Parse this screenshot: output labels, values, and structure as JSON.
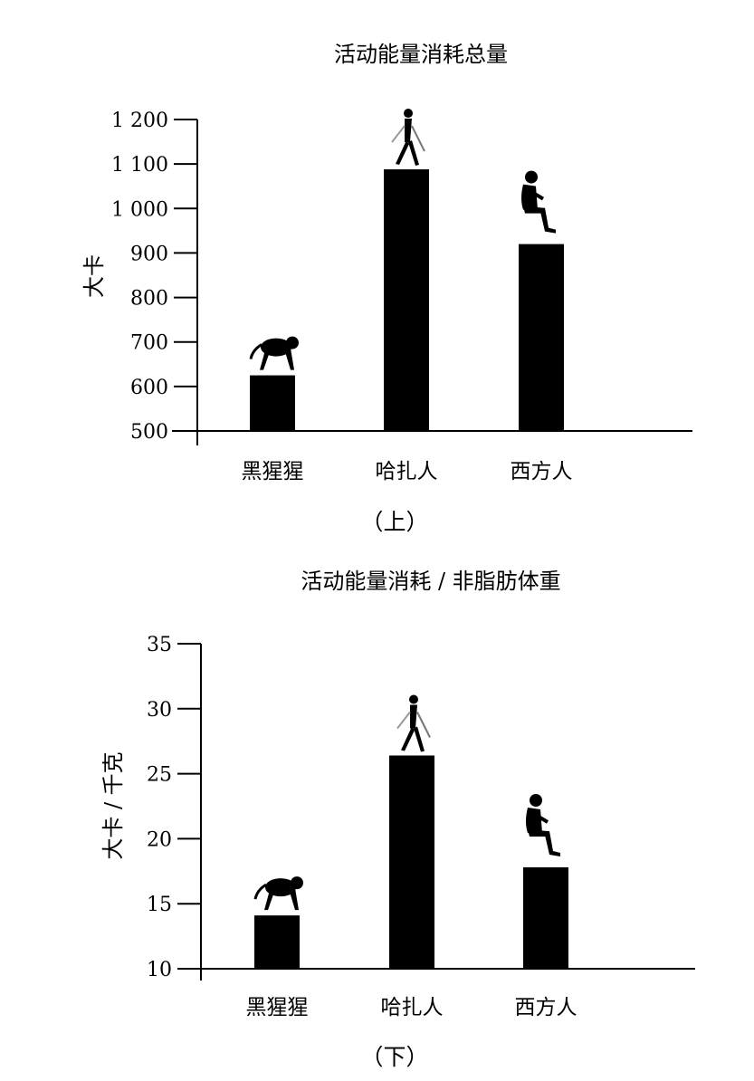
{
  "chart_data": [
    {
      "type": "bar",
      "title": "活动能量消耗总量",
      "ylabel": "大卡",
      "xlabel": "",
      "categories": [
        "黑猩猩",
        "哈扎人",
        "西方人"
      ],
      "values": [
        625,
        1088,
        920
      ],
      "ylim": [
        500,
        1200
      ],
      "yticks": [
        500,
        600,
        700,
        800,
        900,
        1000,
        1100,
        1200
      ],
      "ytick_labels": [
        "500",
        "600",
        "700",
        "800",
        "900",
        "1 000",
        "1 100",
        "1 200"
      ],
      "icons": [
        "chimpanzee-icon",
        "walking-person-icon",
        "seated-person-icon"
      ],
      "caption": "（上）",
      "grid": false,
      "bar_color": "#000000"
    },
    {
      "type": "bar",
      "title": "活动能量消耗 / 非脂肪体重",
      "ylabel": "大卡 / 千克",
      "xlabel": "",
      "categories": [
        "黑猩猩",
        "哈扎人",
        "西方人"
      ],
      "values": [
        14.1,
        26.4,
        17.8
      ],
      "ylim": [
        10,
        35
      ],
      "yticks": [
        10,
        15,
        20,
        25,
        30,
        35
      ],
      "ytick_labels": [
        "10",
        "15",
        "20",
        "25",
        "30",
        "35"
      ],
      "icons": [
        "chimpanzee-icon",
        "walking-person-icon",
        "seated-person-icon"
      ],
      "caption": "（下）",
      "grid": false,
      "bar_color": "#000000"
    }
  ]
}
